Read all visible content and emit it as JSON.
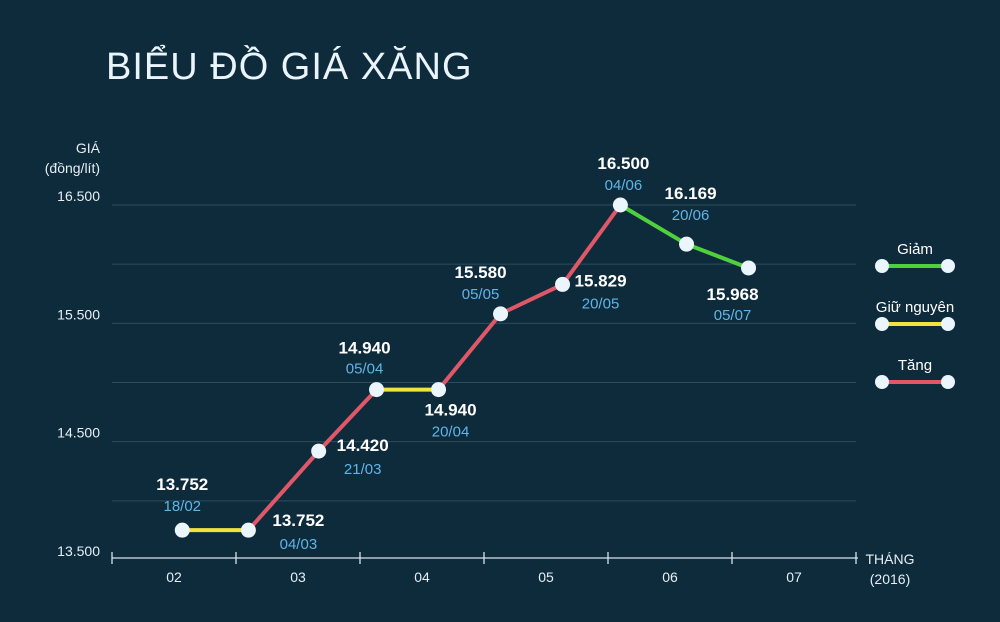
{
  "chart_data": {
    "type": "line",
    "title": "BIỂU ĐỒ GIÁ XĂNG",
    "ylabel": [
      "GIÁ",
      "(đồng/lít)"
    ],
    "xlabel": [
      "THÁNG",
      "(2016)"
    ],
    "ylim": [
      13500,
      16500
    ],
    "yticks": [
      {
        "value": 13500,
        "label": "13.500"
      },
      {
        "value": 14500,
        "label": "14.500"
      },
      {
        "value": 15500,
        "label": "15.500"
      },
      {
        "value": 16500,
        "label": "16.500"
      }
    ],
    "months": [
      "02",
      "03",
      "04",
      "05",
      "06",
      "07"
    ],
    "points": [
      {
        "date": "18/02",
        "value": 13752,
        "label": "13.752"
      },
      {
        "date": "04/03",
        "value": 13752,
        "label": "13.752"
      },
      {
        "date": "21/03",
        "value": 14420,
        "label": "14.420"
      },
      {
        "date": "05/04",
        "value": 14940,
        "label": "14.940"
      },
      {
        "date": "20/04",
        "value": 14940,
        "label": "14.940"
      },
      {
        "date": "05/05",
        "value": 15580,
        "label": "15.580"
      },
      {
        "date": "20/05",
        "value": 15829,
        "label": "15.829"
      },
      {
        "date": "04/06",
        "value": 16500,
        "label": "16.500"
      },
      {
        "date": "20/06",
        "value": 16169,
        "label": "16.169"
      },
      {
        "date": "05/07",
        "value": 15968,
        "label": "15.968"
      }
    ],
    "legend": [
      {
        "name": "Giảm",
        "color": "#4fd13c"
      },
      {
        "name": "Giữ nguyên",
        "color": "#f3e43d"
      },
      {
        "name": "Tăng",
        "color": "#e05868"
      }
    ],
    "colors": {
      "background": "#0e2b3c",
      "grid": "#2c4c5f",
      "point": "#eaf6fc",
      "value_text": "#ffffff",
      "date_text": "#5fb5e8"
    }
  }
}
